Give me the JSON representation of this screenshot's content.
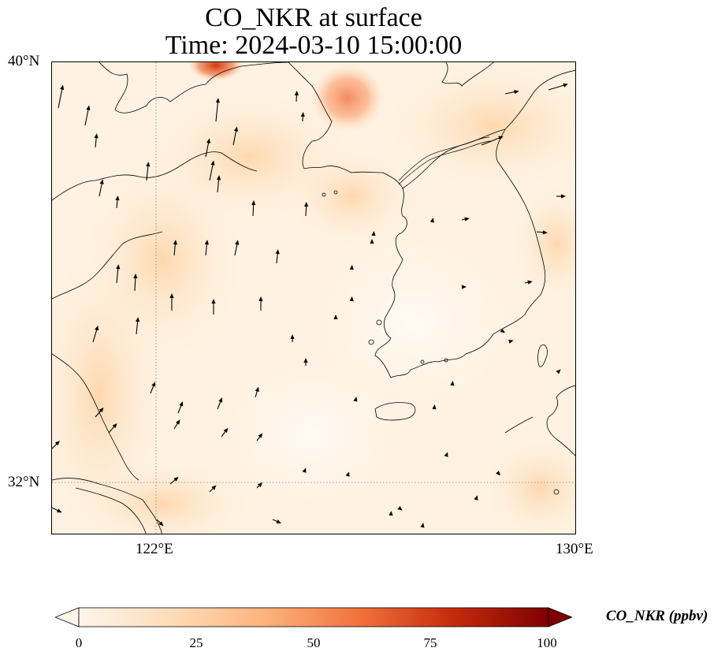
{
  "title": {
    "line1": "CO_NKR at surface",
    "line2": "Time: 2024-03-10 15:00:00"
  },
  "map": {
    "variable": "CO_NKR",
    "level": "surface",
    "lat_labels": [
      "40°N",
      "32°N"
    ],
    "lon_labels": [
      "122°E",
      "130°E"
    ],
    "gridlines": "dotted",
    "wind_vectors": "shown",
    "colormap": "Oranges/OrRd"
  },
  "colorbar": {
    "label": "CO_NKR (ppbv)",
    "ticks": [
      "0",
      "25",
      "50",
      "75",
      "100"
    ],
    "min": 0,
    "max": 100,
    "colors": [
      "#fff5eb",
      "#fdd3a4",
      "#f7a26a",
      "#e0592a",
      "#b71f07",
      "#7f0000"
    ]
  }
}
